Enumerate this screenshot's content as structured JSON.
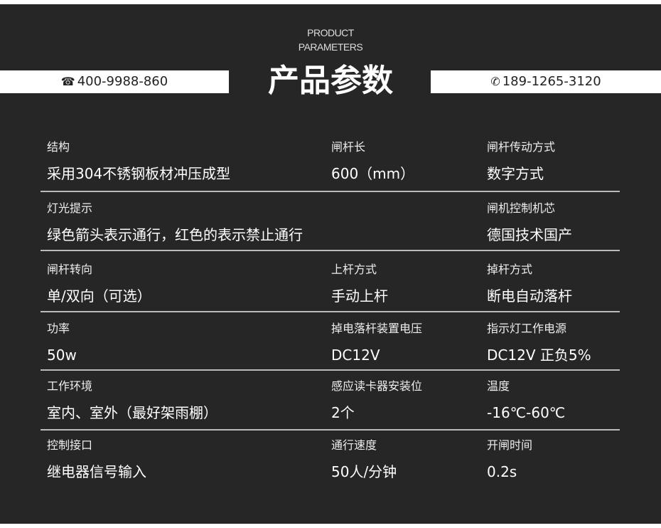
{
  "header": {
    "subtitle_line1": "PRODUCT",
    "subtitle_line2": "PARAMETERS",
    "title": "产品参数",
    "phone_left": "400-9988-860",
    "phone_right": "189-1265-3120",
    "phone_left_icon": "telephone-icon",
    "phone_right_icon": "24h-phone-icon"
  },
  "rows": [
    [
      {
        "label": "结构",
        "value": "采用304不锈钢板材冲压成型"
      },
      {
        "label": "闸杆长",
        "value": "600（mm）"
      },
      {
        "label": "闸杆传动方式",
        "value": "数字方式"
      }
    ],
    [
      {
        "label": "灯光提示",
        "value": "绿色箭头表示通行，红色的表示禁止通行"
      },
      {
        "label": "",
        "value": ""
      },
      {
        "label": "闸机控制机芯",
        "value": "德国技术国产"
      }
    ],
    [
      {
        "label": "闸杆转向",
        "value": "单/双向（可选）"
      },
      {
        "label": "上杆方式",
        "value": "手动上杆"
      },
      {
        "label": "掉杆方式",
        "value": "断电自动落杆"
      }
    ],
    [
      {
        "label": "功率",
        "value": "50w"
      },
      {
        "label": "掉电落杆装置电压",
        "value": "DC12V"
      },
      {
        "label": "指示灯工作电源",
        "value": "DC12V 正负5%"
      }
    ],
    [
      {
        "label": "工作环境",
        "value": "室内、室外（最好架雨棚）"
      },
      {
        "label": "感应读卡器安装位",
        "value": "2个"
      },
      {
        "label": "温度",
        "value": "-16℃-60℃"
      }
    ],
    [
      {
        "label": "控制接口",
        "value": "继电器信号输入"
      },
      {
        "label": "通行速度",
        "value": "50人/分钟"
      },
      {
        "label": "开闸时间",
        "value": "0.2s"
      }
    ]
  ]
}
